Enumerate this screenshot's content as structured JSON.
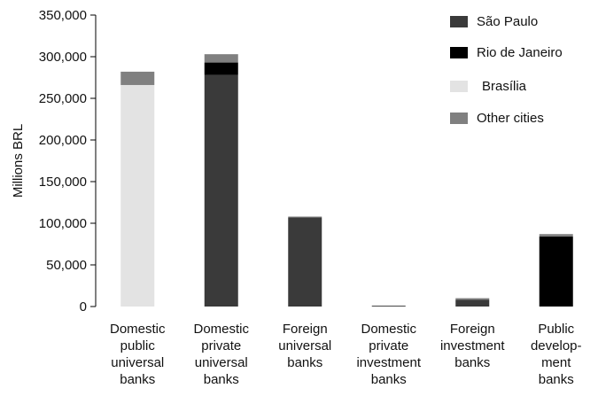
{
  "chart_data": {
    "type": "bar",
    "stacked": true,
    "ylabel": "Millions BRL",
    "ylim": [
      0,
      350000
    ],
    "yticks": [
      0,
      50000,
      100000,
      150000,
      200000,
      250000,
      300000,
      350000
    ],
    "ytick_labels": [
      "0",
      "50,000",
      "100,000",
      "150,000",
      "200,000",
      "250,000",
      "300,000",
      "350,000"
    ],
    "grid": false,
    "legend_position": "top-right",
    "categories": [
      [
        "Domestic",
        "public",
        "universal",
        "banks"
      ],
      [
        "Domestic",
        "private",
        "universal",
        "banks"
      ],
      [
        "Foreign",
        "universal",
        "banks"
      ],
      [
        "Domestic",
        "private",
        "investment",
        "banks"
      ],
      [
        "Foreign",
        "investment",
        "banks"
      ],
      [
        "Public",
        "develop-",
        "ment",
        "banks"
      ]
    ],
    "series": [
      {
        "name": "São Paulo",
        "color": "#3a3a3a",
        "values": [
          0,
          278000,
          107000,
          1000,
          8000,
          0
        ]
      },
      {
        "name": "Rio de Janeiro",
        "color": "#000000",
        "values": [
          0,
          15000,
          0,
          0,
          0,
          84000
        ]
      },
      {
        "name": "Brasília",
        "color": "#e3e3e3",
        "values": [
          266000,
          0,
          0,
          0,
          0,
          0
        ]
      },
      {
        "name": "Other cities",
        "color": "#808080",
        "values": [
          16000,
          10000,
          1000,
          0,
          2000,
          3000
        ]
      }
    ]
  }
}
